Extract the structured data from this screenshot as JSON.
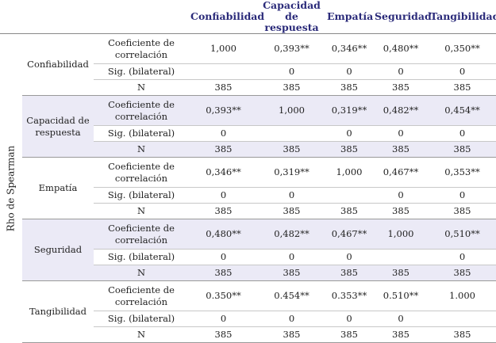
{
  "table": {
    "header": [
      "Confiabilidad",
      "Capacidad de respuesta",
      "Empatía",
      "Seguridad",
      "Tangibilidad"
    ],
    "side_label": "Rho de Spearman",
    "stat_labels": [
      "Coeficiente de correlación",
      "Sig. (bilateral)",
      "N"
    ],
    "groups": [
      {
        "label": "Confiabilidad",
        "shaded": false,
        "rows": [
          [
            "1,000",
            "0,393**",
            "0,346**",
            "0,480**",
            "0,350**"
          ],
          [
            null,
            0,
            0,
            0,
            0
          ],
          [
            385,
            385,
            385,
            385,
            385
          ]
        ]
      },
      {
        "label": "Capacidad de respuesta",
        "shaded": true,
        "rows": [
          [
            "0,393**",
            "1,000",
            "0,319**",
            "0,482**",
            "0,454**"
          ],
          [
            0,
            null,
            0,
            0,
            0
          ],
          [
            385,
            385,
            385,
            385,
            385
          ]
        ]
      },
      {
        "label": "Empatía",
        "shaded": false,
        "rows": [
          [
            "0,346**",
            "0,319**",
            "1,000",
            "0,467**",
            "0,353**"
          ],
          [
            0,
            0,
            null,
            0,
            0
          ],
          [
            385,
            385,
            385,
            385,
            385
          ]
        ]
      },
      {
        "label": "Seguridad",
        "shaded": true,
        "rows": [
          [
            "0,480**",
            "0,482**",
            "0,467**",
            "1,000",
            "0,510**"
          ],
          [
            0,
            0,
            0,
            null,
            0
          ],
          [
            385,
            385,
            385,
            385,
            385
          ]
        ]
      },
      {
        "label": "Tangibilidad",
        "shaded": false,
        "rows": [
          [
            "0.350**",
            "0.454**",
            "0.353**",
            "0.510**",
            "1.000"
          ],
          [
            0,
            0,
            0,
            0,
            null
          ],
          [
            385,
            385,
            385,
            385,
            385
          ]
        ]
      }
    ]
  }
}
